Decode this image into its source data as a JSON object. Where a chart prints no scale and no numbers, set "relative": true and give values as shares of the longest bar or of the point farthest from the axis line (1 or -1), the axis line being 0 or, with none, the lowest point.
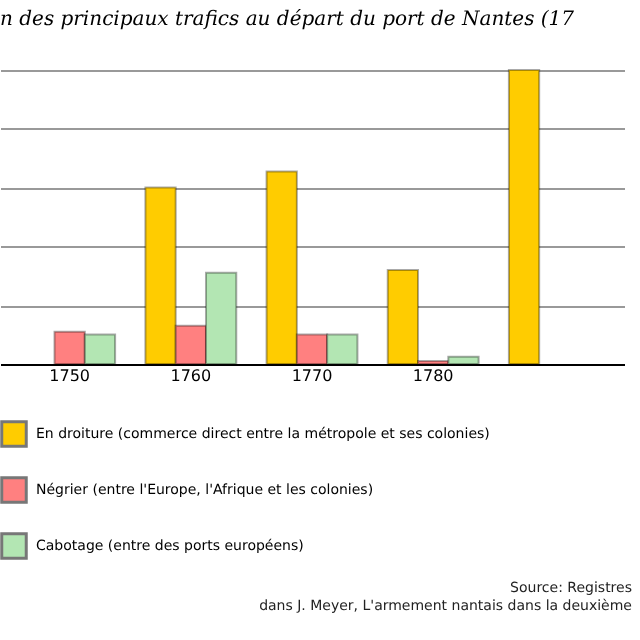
{
  "chart_data": {
    "type": "bar",
    "title": "n des principaux trafics au départ du port de Nantes (17",
    "categories": [
      "1750",
      "1760",
      "1770",
      "1780",
      null
    ],
    "relative": true,
    "grid": "y",
    "legend": "bottom",
    "series": [
      {
        "name": "En droiture (commerce direct entre la métropole et ses colonies)",
        "color": "#ffcc00",
        "values": [
          null,
          0.6,
          0.655,
          0.32,
          1
        ]
      },
      {
        "name": "Négrier (entre l'Europe, l'Afrique et les colonies)",
        "color": "#ff8080",
        "values": [
          0.11,
          0.13,
          0.1,
          0.01,
          null
        ]
      },
      {
        "name": "Cabotage (entre des ports européens)",
        "color": "#b3e6b3",
        "values": [
          0.1,
          0.31,
          0.1,
          0.025,
          null
        ]
      }
    ],
    "annotations": [
      "Source: Registres",
      "dans J. Meyer, L'armement nantais dans la deuxième"
    ]
  }
}
